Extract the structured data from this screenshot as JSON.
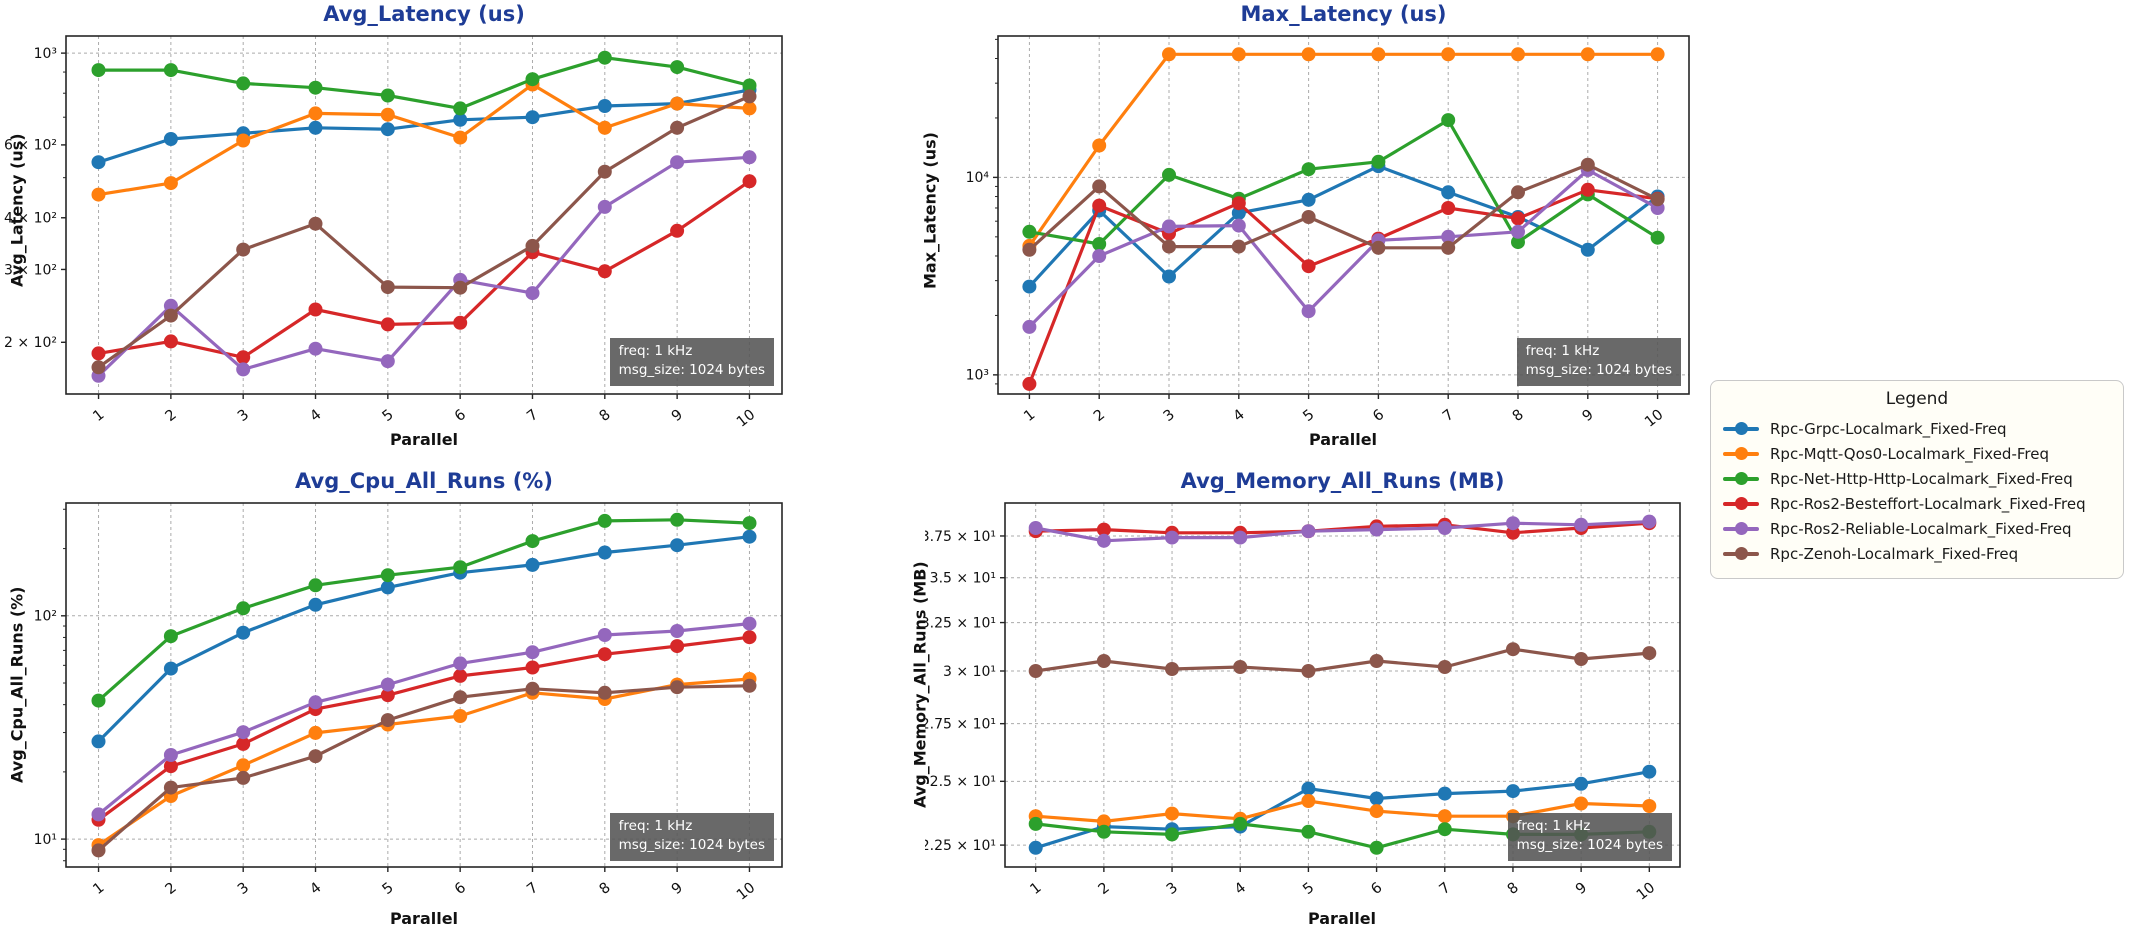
{
  "page": {
    "background": "#ffffff"
  },
  "annotation": {
    "line1": "freq: 1 kHz",
    "line2": "msg_size: 1024 bytes"
  },
  "legend": {
    "title": "Legend",
    "entries": [
      {
        "label": "Rpc-Grpc-Localmark_Fixed-Freq",
        "color": "#1f77b4"
      },
      {
        "label": "Rpc-Mqtt-Qos0-Localmark_Fixed-Freq",
        "color": "#ff7f0e"
      },
      {
        "label": "Rpc-Net-Http-Http-Localmark_Fixed-Freq",
        "color": "#2ca02c"
      },
      {
        "label": "Rpc-Ros2-Besteffort-Localmark_Fixed-Freq",
        "color": "#d62728"
      },
      {
        "label": "Rpc-Ros2-Reliable-Localmark_Fixed-Freq",
        "color": "#9467bd"
      },
      {
        "label": "Rpc-Zenoh-Localmark_Fixed-Freq",
        "color": "#8c564b"
      }
    ]
  },
  "chart_data": [
    {
      "type": "line",
      "title": "Avg_Latency (us)",
      "xlabel": "Parallel",
      "ylabel": "Avg_Latency (us)",
      "x": [
        1,
        2,
        3,
        4,
        5,
        6,
        7,
        8,
        9,
        10
      ],
      "yscale": "log",
      "ylim": [
        150,
        1100
      ],
      "minor": true,
      "grid": true,
      "legend_position": "shared-right",
      "yticks": [
        {
          "v": 1000,
          "label": "10³",
          "grid": true
        },
        {
          "v": 600,
          "label": "6 × 10²",
          "grid": false
        },
        {
          "v": 400,
          "label": "4 × 10²",
          "grid": false
        },
        {
          "v": 300,
          "label": "3 × 10²",
          "grid": false
        },
        {
          "v": 200,
          "label": "2 × 10²",
          "grid": false
        }
      ],
      "series": [
        {
          "name": "Rpc-Grpc-Localmark_Fixed-Freq",
          "color": "#1f77b4",
          "values": [
            545,
            620,
            640,
            660,
            655,
            690,
            700,
            745,
            755,
            815
          ]
        },
        {
          "name": "Rpc-Mqtt-Qos0-Localmark_Fixed-Freq",
          "color": "#ff7f0e",
          "values": [
            455,
            485,
            615,
            715,
            710,
            625,
            840,
            660,
            755,
            735
          ]
        },
        {
          "name": "Rpc-Net-Http-Http-Localmark_Fixed-Freq",
          "color": "#2ca02c",
          "values": [
            910,
            910,
            845,
            825,
            790,
            735,
            865,
            975,
            925,
            835
          ]
        },
        {
          "name": "Rpc-Ros2-Besteffort-Localmark_Fixed-Freq",
          "color": "#d62728",
          "values": [
            188,
            201,
            184,
            240,
            221,
            223,
            330,
            297,
            372,
            490
          ]
        },
        {
          "name": "Rpc-Ros2-Reliable-Localmark_Fixed-Freq",
          "color": "#9467bd",
          "values": [
            166,
            245,
            172,
            193,
            180,
            283,
            263,
            425,
            545,
            560
          ]
        },
        {
          "name": "Rpc-Zenoh-Localmark_Fixed-Freq",
          "color": "#8c564b",
          "values": [
            174,
            232,
            335,
            387,
            272,
            271,
            342,
            517,
            660,
            786
          ]
        }
      ]
    },
    {
      "type": "line",
      "title": "Max_Latency (us)",
      "xlabel": "Parallel",
      "ylabel": "Max_Latency (us)",
      "x": [
        1,
        2,
        3,
        4,
        5,
        6,
        7,
        8,
        9,
        10
      ],
      "yscale": "log",
      "ylim": [
        800,
        52000
      ],
      "minor": true,
      "grid": true,
      "legend_position": "shared-right",
      "yticks": [
        {
          "v": 10000,
          "label": "10⁴",
          "grid": true
        },
        {
          "v": 1000,
          "label": "10³",
          "grid": true
        }
      ],
      "series": [
        {
          "name": "Rpc-Grpc-Localmark_Fixed-Freq",
          "color": "#1f77b4",
          "values": [
            2800,
            6800,
            3150,
            6600,
            7700,
            11400,
            8400,
            6300,
            4300,
            8000
          ]
        },
        {
          "name": "Rpc-Mqtt-Qos0-Localmark_Fixed-Freq",
          "color": "#ff7f0e",
          "values": [
            4500,
            14500,
            42000,
            42000,
            42000,
            42000,
            42000,
            42000,
            42000,
            42000
          ]
        },
        {
          "name": "Rpc-Net-Http-Http-Localmark_Fixed-Freq",
          "color": "#2ca02c",
          "values": [
            5300,
            4600,
            10300,
            7800,
            11000,
            12000,
            19500,
            4700,
            8200,
            4950
          ]
        },
        {
          "name": "Rpc-Ros2-Besteffort-Localmark_Fixed-Freq",
          "color": "#d62728",
          "values": [
            900,
            7200,
            5200,
            7400,
            3550,
            4900,
            7000,
            6200,
            8650,
            7800
          ]
        },
        {
          "name": "Rpc-Ros2-Reliable-Localmark_Fixed-Freq",
          "color": "#9467bd",
          "values": [
            1750,
            4000,
            5650,
            5700,
            2100,
            4800,
            5000,
            5300,
            10900,
            7000
          ]
        },
        {
          "name": "Rpc-Zenoh-Localmark_Fixed-Freq",
          "color": "#8c564b",
          "values": [
            4300,
            9000,
            4460,
            4460,
            6300,
            4400,
            4400,
            8400,
            11600,
            7750
          ]
        }
      ]
    },
    {
      "type": "line",
      "title": "Avg_Cpu_All_Runs (%)",
      "xlabel": "Parallel",
      "ylabel": "Avg_Cpu_All_Runs (%)",
      "x": [
        1,
        2,
        3,
        4,
        5,
        6,
        7,
        8,
        9,
        10
      ],
      "yscale": "log",
      "ylim": [
        7.5,
        320
      ],
      "minor": true,
      "grid": true,
      "legend_position": "shared-right",
      "yticks": [
        {
          "v": 100,
          "label": "10²",
          "grid": true
        },
        {
          "v": 10,
          "label": "10¹",
          "grid": true
        }
      ],
      "series": [
        {
          "name": "Rpc-Grpc-Localmark_Fixed-Freq",
          "color": "#1f77b4",
          "values": [
            27.4,
            58,
            84,
            112,
            134,
            156,
            169,
            192,
            207,
            226
          ]
        },
        {
          "name": "Rpc-Mqtt-Qos0-Localmark_Fixed-Freq",
          "color": "#ff7f0e",
          "values": [
            9.4,
            15.6,
            21.4,
            29.9,
            32.6,
            35.6,
            45.2,
            42.4,
            49.2,
            52.1
          ]
        },
        {
          "name": "Rpc-Net-Http-Http-Localmark_Fixed-Freq",
          "color": "#2ca02c",
          "values": [
            41.7,
            81,
            108,
            137,
            152,
            165,
            216,
            266,
            269,
            260
          ]
        },
        {
          "name": "Rpc-Ros2-Besteffort-Localmark_Fixed-Freq",
          "color": "#d62728",
          "values": [
            12.2,
            21.2,
            26.7,
            38.2,
            44.1,
            53.8,
            58.7,
            67.3,
            73.2,
            80.2
          ]
        },
        {
          "name": "Rpc-Ros2-Reliable-Localmark_Fixed-Freq",
          "color": "#9467bd",
          "values": [
            12.9,
            23.8,
            30.1,
            41.0,
            49.2,
            61.2,
            68.7,
            82.0,
            85.5,
            92.3
          ]
        },
        {
          "name": "Rpc-Zenoh-Localmark_Fixed-Freq",
          "color": "#8c564b",
          "values": [
            8.9,
            17.0,
            18.8,
            23.5,
            34.1,
            43.2,
            47.1,
            45.2,
            47.9,
            48.6
          ]
        }
      ]
    },
    {
      "type": "line",
      "title": "Avg_Memory_All_Runs (MB)",
      "xlabel": "Parallel",
      "ylabel": "Avg_Memory_All_Runs (MB)",
      "x": [
        1,
        2,
        3,
        4,
        5,
        6,
        7,
        8,
        9,
        10
      ],
      "yscale": "log",
      "ylim": [
        21.7,
        39.6
      ],
      "minor": false,
      "grid": true,
      "legend_position": "shared-right",
      "yticks": [
        {
          "v": 37.5,
          "label": "3.75 × 10¹",
          "grid": true
        },
        {
          "v": 35,
          "label": "3.5 × 10¹",
          "grid": true
        },
        {
          "v": 32.5,
          "label": "3.25 × 10¹",
          "grid": true
        },
        {
          "v": 30,
          "label": "3 × 10¹",
          "grid": true
        },
        {
          "v": 27.5,
          "label": "2.75 × 10¹",
          "grid": true
        },
        {
          "v": 25,
          "label": "2.5 × 10¹",
          "grid": true
        },
        {
          "v": 22.5,
          "label": "2.25 × 10¹",
          "grid": true
        }
      ],
      "series": [
        {
          "name": "Rpc-Grpc-Localmark_Fixed-Freq",
          "color": "#1f77b4",
          "values": [
            22.4,
            23.2,
            23.1,
            23.2,
            24.7,
            24.3,
            24.5,
            24.6,
            24.9,
            25.4
          ]
        },
        {
          "name": "Rpc-Mqtt-Qos0-Localmark_Fixed-Freq",
          "color": "#ff7f0e",
          "values": [
            23.6,
            23.4,
            23.7,
            23.5,
            24.2,
            23.8,
            23.6,
            23.6,
            24.1,
            24.0
          ]
        },
        {
          "name": "Rpc-Net-Http-Http-Localmark_Fixed-Freq",
          "color": "#2ca02c",
          "values": [
            23.3,
            23.0,
            22.9,
            23.3,
            23.0,
            22.4,
            23.1,
            22.9,
            22.9,
            23.0
          ]
        },
        {
          "name": "Rpc-Ros2-Besteffort-Localmark_Fixed-Freq",
          "color": "#d62728",
          "values": [
            37.8,
            37.9,
            37.7,
            37.7,
            37.8,
            38.1,
            38.2,
            37.7,
            38.0,
            38.3
          ]
        },
        {
          "name": "Rpc-Ros2-Reliable-Localmark_Fixed-Freq",
          "color": "#9467bd",
          "values": [
            38.0,
            37.2,
            37.4,
            37.4,
            37.8,
            37.9,
            38.0,
            38.3,
            38.2,
            38.4
          ]
        },
        {
          "name": "Rpc-Zenoh-Localmark_Fixed-Freq",
          "color": "#8c564b",
          "values": [
            30.0,
            30.5,
            30.1,
            30.2,
            30.0,
            30.5,
            30.2,
            31.1,
            30.6,
            30.9
          ]
        }
      ]
    }
  ]
}
